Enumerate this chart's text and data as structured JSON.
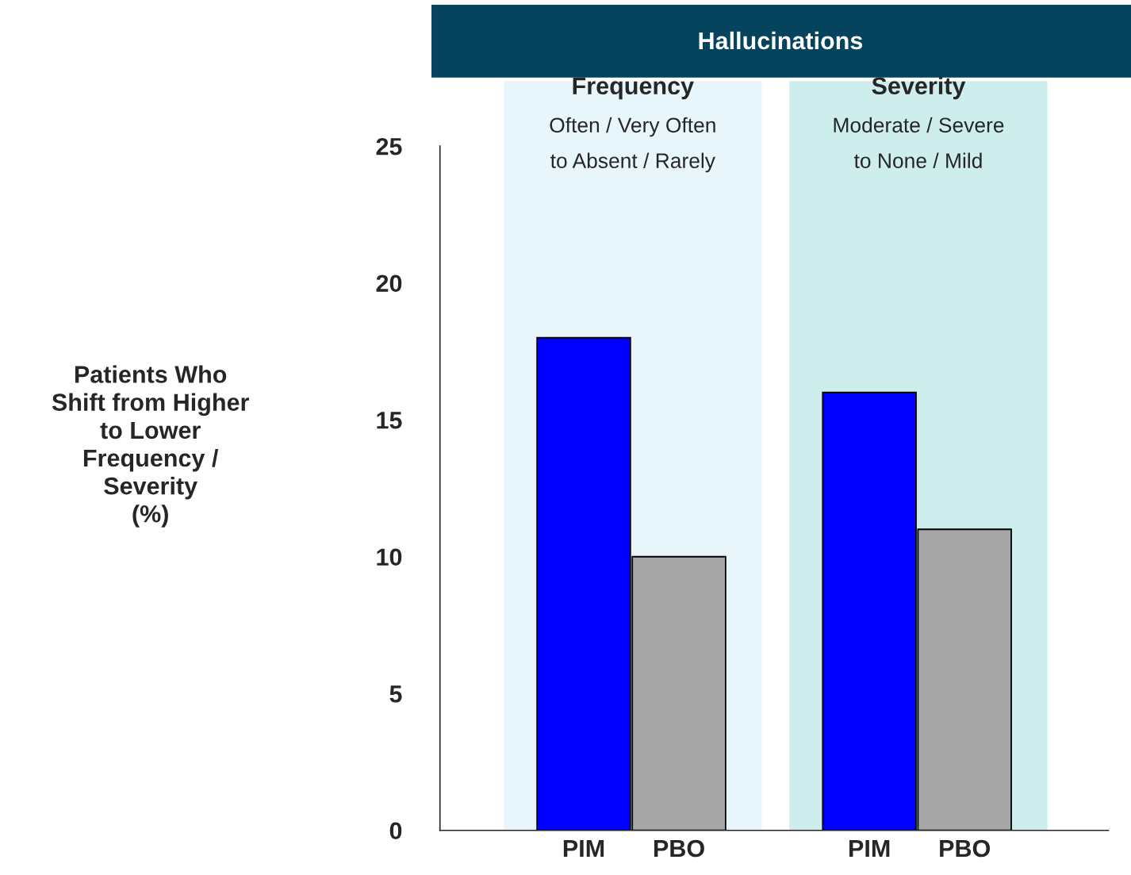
{
  "chart_data": {
    "type": "bar",
    "title": "Hallucinations",
    "categories": [
      "PIM",
      "PBO",
      "PIM",
      "PBO"
    ],
    "values": [
      18,
      10,
      16,
      11
    ],
    "colors": [
      "#0000ff",
      "#a6a6a6",
      "#0000ff",
      "#a6a6a6"
    ],
    "ylim": [
      0,
      25
    ],
    "yticks": [
      0,
      5,
      10,
      15,
      20,
      25
    ],
    "grid": false,
    "annotations": [
      "Patients Who\nShift from Higher\nto Lower\nFrequency /\nSeverity\n(%)",
      "Frequency\nOften / Very Often\nto Absent / Rarely",
      "Severity\nModerate / Severe\nto None / Mild"
    ]
  }
}
